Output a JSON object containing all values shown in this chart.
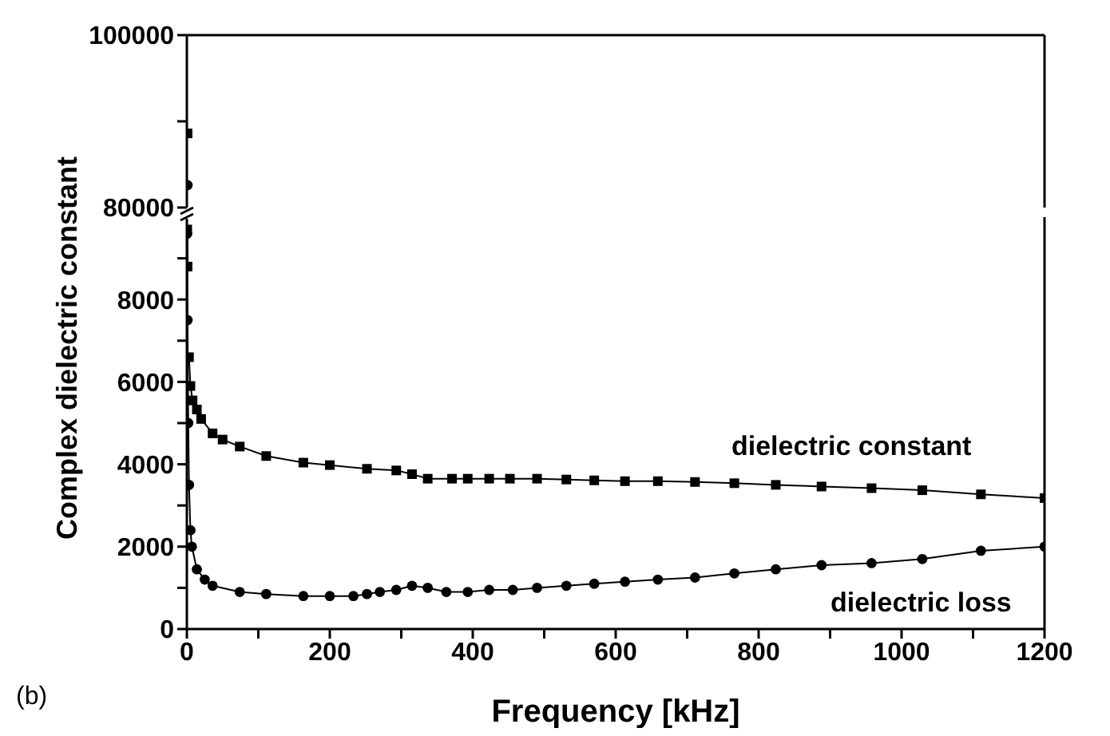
{
  "chart_data": [
    {
      "type": "line",
      "xlim": [
        0,
        1200
      ],
      "ylim": [
        80000,
        100000
      ],
      "yticks": [
        80000,
        {
          "value": 90000,
          "label": null
        },
        100000
      ],
      "tick_labels": "y",
      "series": [
        {
          "color": "#000000",
          "marker": "square",
          "x": [
            1
          ],
          "values": [
            88600
          ]
        },
        {
          "color": "#000000",
          "marker": "circle",
          "x": [
            1
          ],
          "values": [
            82600
          ]
        }
      ]
    },
    {
      "type": "line",
      "xlabel": "Frequency [kHz]",
      "ylabel": "Complex dielectric constant",
      "annotations": [
        "(b)"
      ],
      "xlim": [
        0,
        1200
      ],
      "ylim": [
        0,
        10000
      ],
      "xticks": [
        0,
        {
          "value": 100,
          "label": null
        },
        200,
        {
          "value": 300,
          "label": null
        },
        400,
        {
          "value": 500,
          "label": null
        },
        600,
        {
          "value": 700,
          "label": null
        },
        800,
        {
          "value": 900,
          "label": null
        },
        1000,
        {
          "value": 1100,
          "label": null
        },
        1200
      ],
      "yticks": [
        0,
        {
          "value": 1000,
          "label": null
        },
        2000,
        {
          "value": 3000,
          "label": null
        },
        4000,
        {
          "value": 5000,
          "label": null
        },
        6000,
        {
          "value": 7000,
          "label": null
        },
        8000,
        {
          "value": 9000,
          "label": null
        }
      ],
      "series": [
        {
          "name": "dielectric constant",
          "color": "#000000",
          "marker": "square",
          "x": [
            0.5,
            1,
            2,
            3,
            5,
            8,
            14,
            20,
            36,
            50,
            74,
            111,
            163,
            200,
            252,
            293,
            315,
            337,
            371,
            393,
            423,
            452,
            490,
            531,
            570,
            613,
            659,
            711,
            766,
            824,
            888,
            958,
            1029,
            1111,
            1200
          ],
          "values": [
            9700,
            8800,
            null,
            6600,
            5900,
            5550,
            5330,
            5100,
            4750,
            4600,
            4430,
            4200,
            4040,
            3980,
            3890,
            3850,
            3760,
            3650,
            3650,
            3650,
            3650,
            3650,
            3650,
            3630,
            3610,
            3590,
            3590,
            3570,
            3540,
            3500,
            3460,
            3420,
            3370,
            3270,
            3180
          ]
        },
        {
          "name": "dielectric loss",
          "color": "#000000",
          "marker": "circle",
          "x": [
            0.5,
            1,
            2,
            3,
            5,
            7,
            14,
            25,
            36,
            74,
            111,
            163,
            200,
            233,
            252,
            270,
            293,
            315,
            337,
            363,
            393,
            423,
            456,
            490,
            531,
            570,
            613,
            659,
            711,
            766,
            824,
            888,
            958,
            1029,
            1111,
            1200
          ],
          "values": [
            9600,
            7500,
            5000,
            3500,
            2400,
            2000,
            1450,
            1200,
            1050,
            900,
            850,
            800,
            800,
            800,
            850,
            900,
            950,
            1050,
            1000,
            900,
            900,
            950,
            950,
            1000,
            1050,
            1100,
            1150,
            1200,
            1250,
            1350,
            1450,
            1550,
            1600,
            1700,
            1900,
            2000
          ]
        }
      ]
    }
  ]
}
